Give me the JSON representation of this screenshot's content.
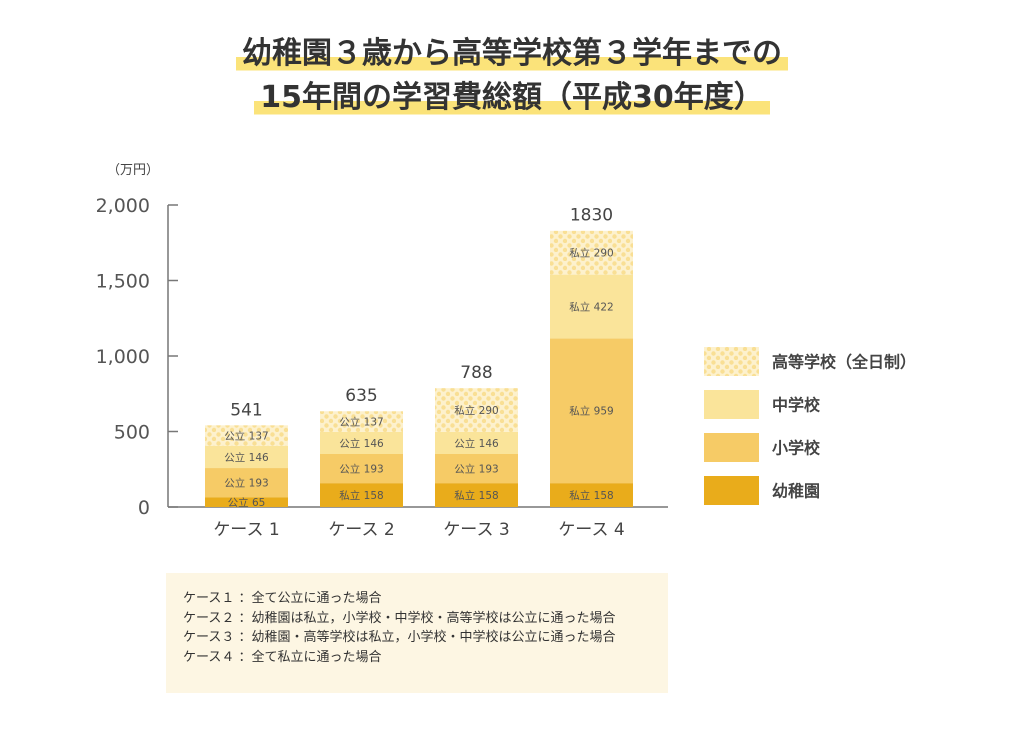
{
  "title": {
    "line1": "幼稚園３歳から高等学校第３学年までの",
    "line2": "15年間の学習費総額（平成30年度）"
  },
  "chart_data": {
    "type": "bar",
    "stacked": true,
    "unit_label": "（万円）",
    "ylim": [
      0,
      2000
    ],
    "y_ticks": [
      "0",
      "500",
      "1,000",
      "1,500",
      "2,000"
    ],
    "categories": [
      "ケース 1",
      "ケース 2",
      "ケース 3",
      "ケース 4"
    ],
    "totals": [
      541,
      635,
      788,
      1830
    ],
    "series": [
      {
        "name": "幼稚園",
        "color": "#e9ac1b",
        "pattern": false,
        "values": [
          65,
          158,
          158,
          158
        ],
        "labels": [
          "公立 65",
          "私立 158",
          "私立 158",
          "私立 158"
        ]
      },
      {
        "name": "小学校",
        "color": "#f6cb66",
        "pattern": false,
        "values": [
          193,
          193,
          193,
          959
        ],
        "labels": [
          "公立 193",
          "公立 193",
          "公立 193",
          "私立 959"
        ]
      },
      {
        "name": "中学校",
        "color": "#fae49a",
        "pattern": false,
        "values": [
          146,
          146,
          146,
          422
        ],
        "labels": [
          "公立 146",
          "公立 146",
          "公立 146",
          "私立 422"
        ]
      },
      {
        "name": "高等学校（全日制）",
        "color": "#fdf1cd",
        "dot_color": "#f9df94",
        "pattern": true,
        "values": [
          137,
          137,
          290,
          290
        ],
        "labels": [
          "公立 137",
          "公立 137",
          "私立 290",
          "私立 290"
        ]
      }
    ],
    "legend_order": [
      "高等学校（全日制）",
      "中学校",
      "小学校",
      "幼稚園"
    ],
    "legend_position": "right"
  },
  "notes": [
    "ケース１ ：全て公立に通った場合",
    "ケース２ ：幼稚園は私立，小学校・中学校・高等学校は公立に通った場合",
    "ケース３ ：幼稚園・高等学校は私立，小学校・中学校は公立に通った場合",
    "ケース４ ：全て私立に通った場合"
  ]
}
